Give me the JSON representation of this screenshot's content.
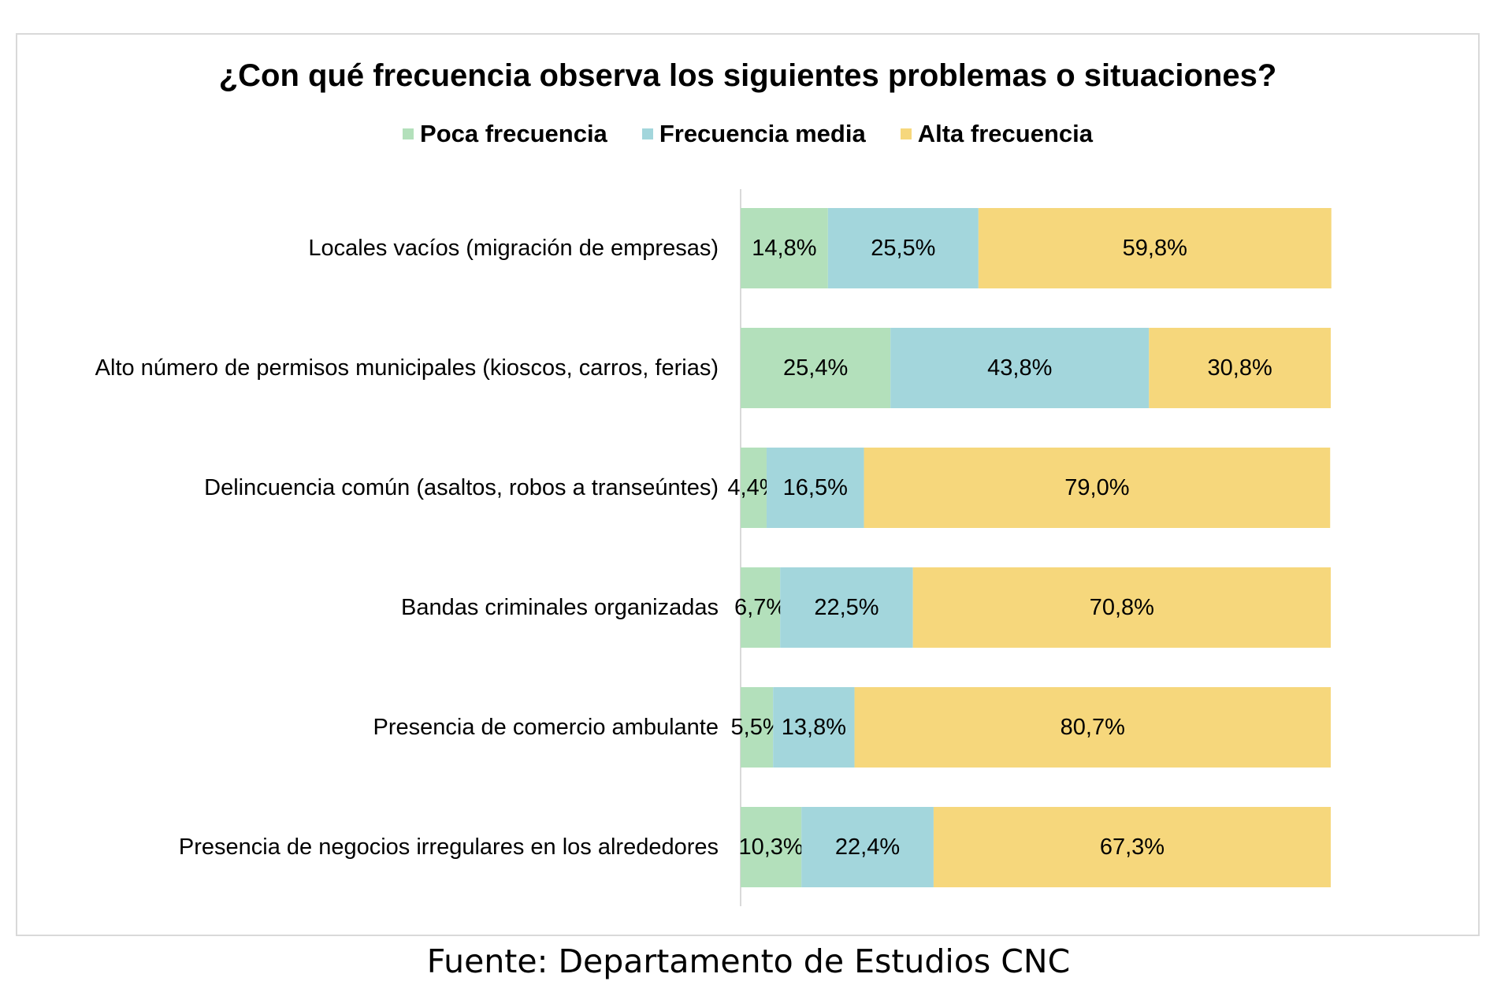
{
  "chart_data": {
    "type": "bar",
    "orientation": "horizontal",
    "stacked": true,
    "title": "¿Con qué frecuencia observa los siguientes problemas o situaciones?",
    "categories": [
      "Locales vacíos (migración de empresas)",
      "Alto número de permisos municipales (kioscos, carros, ferias)",
      "Delincuencia común (asaltos, robos a transeúntes)",
      "Bandas criminales organizadas",
      "Presencia de comercio ambulante",
      "Presencia de negocios irregulares en los alrededores"
    ],
    "series": [
      {
        "name": "Poca frecuencia",
        "color": "#b3e0bb",
        "values": [
          14.8,
          25.4,
          4.4,
          6.7,
          5.5,
          10.3
        ],
        "labels": [
          "14,8%",
          "25,4%",
          "4,4%",
          "6,7%",
          "5,5%",
          "10,3%"
        ]
      },
      {
        "name": "Frecuencia media",
        "color": "#a3d6dc",
        "values": [
          25.5,
          43.8,
          16.5,
          22.5,
          13.8,
          22.4
        ],
        "labels": [
          "25,5%",
          "43,8%",
          "16,5%",
          "22,5%",
          "13,8%",
          "22,4%"
        ]
      },
      {
        "name": "Alta frecuencia",
        "color": "#f6d77c",
        "values": [
          59.8,
          30.8,
          79.0,
          70.8,
          80.7,
          67.3
        ],
        "labels": [
          "59,8%",
          "30,8%",
          "79,0%",
          "70,8%",
          "80,7%",
          "67,3%"
        ]
      }
    ],
    "xlim": [
      0,
      100
    ],
    "legend_position": "top",
    "grid": false
  },
  "source": "Fuente: Departamento de Estudios CNC"
}
